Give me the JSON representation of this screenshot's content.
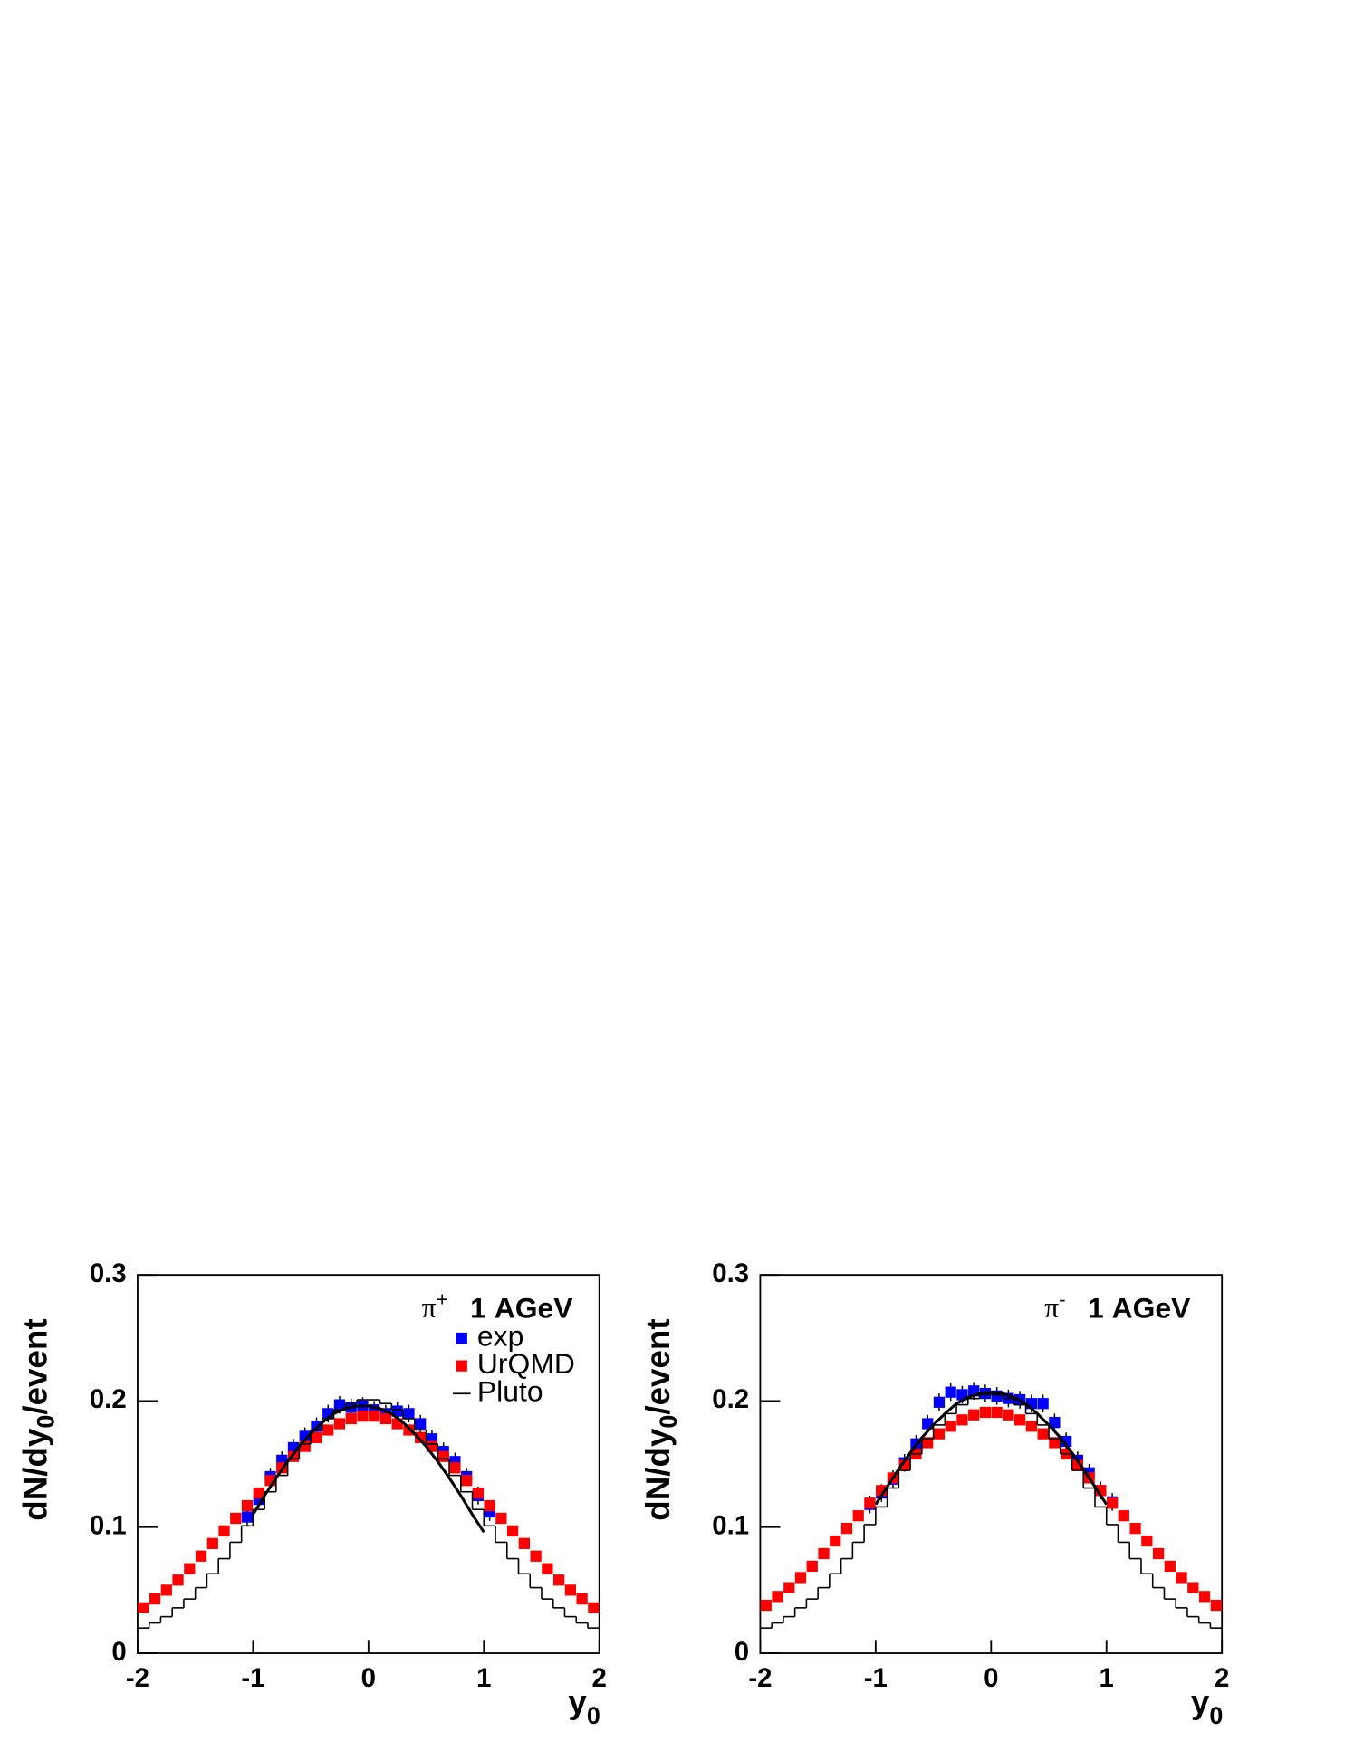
{
  "chart_data": [
    {
      "type": "rapidity",
      "annotation": {
        "particle": "π",
        "charge": "+",
        "energy": "1 AGeV"
      },
      "ylabel": {
        "main": "dN/dy",
        "sub": "0",
        "rest": "/event"
      },
      "xlabel": {
        "main": "y",
        "sub": "0"
      },
      "xlim": [
        -2,
        2
      ],
      "ylim": [
        0,
        0.3
      ],
      "xticks": [
        -2,
        -1,
        0,
        1,
        2
      ],
      "yticks": [
        0,
        0.1,
        0.2,
        0.3
      ],
      "legend": true,
      "series": [
        {
          "name": "exp",
          "color": "#0000ff",
          "style": "points",
          "x": [
            -1.05,
            -0.95,
            -0.85,
            -0.75,
            -0.65,
            -0.55,
            -0.45,
            -0.35,
            -0.25,
            -0.15,
            -0.05,
            0.05,
            0.15,
            0.25,
            0.35,
            0.45,
            0.55,
            0.65,
            0.75,
            0.85,
            0.95,
            1.05
          ],
          "values": [
            0.108,
            0.122,
            0.14,
            0.153,
            0.163,
            0.172,
            0.18,
            0.19,
            0.197,
            0.195,
            0.196,
            0.193,
            0.19,
            0.192,
            0.19,
            0.182,
            0.17,
            0.16,
            0.152,
            0.14,
            0.125,
            0.112
          ],
          "errors": [
            0.007,
            0.007,
            0.007,
            0.007,
            0.007,
            0.007,
            0.007,
            0.007,
            0.007,
            0.007,
            0.007,
            0.007,
            0.007,
            0.007,
            0.007,
            0.007,
            0.007,
            0.007,
            0.007,
            0.007,
            0.007,
            0.007
          ]
        },
        {
          "name": "UrQMD",
          "color": "#ff0000",
          "style": "points",
          "x": [
            -1.95,
            -1.85,
            -1.75,
            -1.65,
            -1.55,
            -1.45,
            -1.35,
            -1.25,
            -1.15,
            -1.05,
            -0.95,
            -0.85,
            -0.75,
            -0.65,
            -0.55,
            -0.45,
            -0.35,
            -0.25,
            -0.15,
            -0.05,
            0.05,
            0.15,
            0.25,
            0.35,
            0.45,
            0.55,
            0.65,
            0.75,
            0.85,
            0.95,
            1.05,
            1.15,
            1.25,
            1.35,
            1.45,
            1.55,
            1.65,
            1.75,
            1.85,
            1.95
          ],
          "values": [
            0.036,
            0.043,
            0.05,
            0.058,
            0.067,
            0.077,
            0.087,
            0.097,
            0.107,
            0.117,
            0.127,
            0.137,
            0.147,
            0.156,
            0.164,
            0.171,
            0.177,
            0.182,
            0.186,
            0.188,
            0.188,
            0.186,
            0.182,
            0.177,
            0.171,
            0.164,
            0.156,
            0.147,
            0.137,
            0.127,
            0.117,
            0.107,
            0.097,
            0.087,
            0.077,
            0.067,
            0.058,
            0.05,
            0.043,
            0.036
          ]
        },
        {
          "name": "Pluto",
          "color": "#000000",
          "style": "hist",
          "bins": [
            -2,
            -1.9,
            -1.8,
            -1.7,
            -1.6,
            -1.5,
            -1.4,
            -1.3,
            -1.2,
            -1.1,
            -1,
            -0.9,
            -0.8,
            -0.7,
            -0.6,
            -0.5,
            -0.4,
            -0.3,
            -0.2,
            -0.1,
            0,
            0.1,
            0.2,
            0.3,
            0.4,
            0.5,
            0.6,
            0.7,
            0.8,
            0.9,
            1,
            1.1,
            1.2,
            1.3,
            1.4,
            1.5,
            1.6,
            1.7,
            1.8,
            1.9,
            2
          ],
          "values": [
            0.02,
            0.024,
            0.029,
            0.036,
            0.043,
            0.052,
            0.063,
            0.075,
            0.088,
            0.101,
            0.114,
            0.128,
            0.141,
            0.154,
            0.166,
            0.177,
            0.186,
            0.193,
            0.198,
            0.201,
            0.201,
            0.198,
            0.193,
            0.186,
            0.177,
            0.166,
            0.154,
            0.141,
            0.128,
            0.114,
            0.101,
            0.088,
            0.075,
            0.063,
            0.052,
            0.043,
            0.036,
            0.029,
            0.024,
            0.02
          ]
        },
        {
          "color": "#000000",
          "style": "curve",
          "x": [
            -1,
            -0.9,
            -0.8,
            -0.7,
            -0.6,
            -0.5,
            -0.4,
            -0.3,
            -0.2,
            -0.1,
            0,
            0.1,
            0.2,
            0.3,
            0.4,
            0.5,
            0.6,
            0.7,
            0.8,
            0.9,
            1
          ],
          "values": [
            0.11,
            0.125,
            0.139,
            0.152,
            0.164,
            0.174,
            0.183,
            0.19,
            0.194,
            0.196,
            0.196,
            0.194,
            0.19,
            0.183,
            0.174,
            0.164,
            0.152,
            0.139,
            0.125,
            0.11,
            0.096
          ]
        }
      ]
    },
    {
      "type": "rapidity",
      "annotation": {
        "particle": "π",
        "charge": "-",
        "energy": "1 AGeV"
      },
      "ylabel": {
        "main": "dN/dy",
        "sub": "0",
        "rest": "/event"
      },
      "xlabel": {
        "main": "y",
        "sub": "0"
      },
      "xlim": [
        -2,
        2
      ],
      "ylim": [
        0,
        0.3
      ],
      "xticks": [
        -2,
        -1,
        0,
        1,
        2
      ],
      "yticks": [
        0,
        0.1,
        0.2,
        0.3
      ],
      "legend": false,
      "series": [
        {
          "color": "#0000ff",
          "style": "points",
          "x": [
            -1.05,
            -0.95,
            -0.85,
            -0.75,
            -0.65,
            -0.55,
            -0.45,
            -0.35,
            -0.25,
            -0.15,
            -0.05,
            0.05,
            0.15,
            0.25,
            0.35,
            0.45,
            0.55,
            0.65,
            0.75,
            0.85,
            0.95,
            1.05
          ],
          "values": [
            0.118,
            0.127,
            0.138,
            0.151,
            0.166,
            0.182,
            0.199,
            0.207,
            0.205,
            0.208,
            0.206,
            0.204,
            0.202,
            0.201,
            0.198,
            0.198,
            0.183,
            0.168,
            0.153,
            0.143,
            0.129,
            0.12
          ],
          "errors": [
            0.007,
            0.007,
            0.007,
            0.007,
            0.007,
            0.007,
            0.007,
            0.007,
            0.007,
            0.007,
            0.007,
            0.007,
            0.007,
            0.007,
            0.007,
            0.007,
            0.007,
            0.007,
            0.007,
            0.007,
            0.007,
            0.007
          ]
        },
        {
          "color": "#ff0000",
          "style": "points",
          "x": [
            -1.95,
            -1.85,
            -1.75,
            -1.65,
            -1.55,
            -1.45,
            -1.35,
            -1.25,
            -1.15,
            -1.05,
            -0.95,
            -0.85,
            -0.75,
            -0.65,
            -0.55,
            -0.45,
            -0.35,
            -0.25,
            -0.15,
            -0.05,
            0.05,
            0.15,
            0.25,
            0.35,
            0.45,
            0.55,
            0.65,
            0.75,
            0.85,
            0.95,
            1.05,
            1.15,
            1.25,
            1.35,
            1.45,
            1.55,
            1.65,
            1.75,
            1.85,
            1.95
          ],
          "values": [
            0.038,
            0.045,
            0.052,
            0.06,
            0.069,
            0.079,
            0.089,
            0.099,
            0.109,
            0.119,
            0.129,
            0.139,
            0.149,
            0.158,
            0.167,
            0.174,
            0.18,
            0.185,
            0.189,
            0.191,
            0.191,
            0.189,
            0.185,
            0.18,
            0.174,
            0.167,
            0.158,
            0.149,
            0.139,
            0.129,
            0.119,
            0.109,
            0.099,
            0.089,
            0.079,
            0.069,
            0.06,
            0.052,
            0.045,
            0.038
          ]
        },
        {
          "color": "#000000",
          "style": "hist",
          "bins": [
            -2,
            -1.9,
            -1.8,
            -1.7,
            -1.6,
            -1.5,
            -1.4,
            -1.3,
            -1.2,
            -1.1,
            -1,
            -0.9,
            -0.8,
            -0.7,
            -0.6,
            -0.5,
            -0.4,
            -0.3,
            -0.2,
            -0.1,
            0,
            0.1,
            0.2,
            0.3,
            0.4,
            0.5,
            0.6,
            0.7,
            0.8,
            0.9,
            1,
            1.1,
            1.2,
            1.3,
            1.4,
            1.5,
            1.6,
            1.7,
            1.8,
            1.9,
            2
          ],
          "values": [
            0.02,
            0.024,
            0.029,
            0.036,
            0.043,
            0.052,
            0.063,
            0.075,
            0.088,
            0.102,
            0.116,
            0.131,
            0.145,
            0.158,
            0.17,
            0.181,
            0.19,
            0.197,
            0.202,
            0.205,
            0.205,
            0.202,
            0.197,
            0.19,
            0.181,
            0.17,
            0.158,
            0.145,
            0.131,
            0.116,
            0.102,
            0.088,
            0.075,
            0.063,
            0.052,
            0.043,
            0.036,
            0.029,
            0.024,
            0.02
          ]
        },
        {
          "color": "#000000",
          "style": "curve",
          "x": [
            -1,
            -0.9,
            -0.8,
            -0.7,
            -0.6,
            -0.5,
            -0.4,
            -0.3,
            -0.2,
            -0.1,
            0,
            0.1,
            0.2,
            0.3,
            0.4,
            0.5,
            0.6,
            0.7,
            0.8,
            0.9,
            1
          ],
          "values": [
            0.118,
            0.132,
            0.146,
            0.159,
            0.171,
            0.181,
            0.19,
            0.198,
            0.203,
            0.206,
            0.207,
            0.206,
            0.203,
            0.198,
            0.19,
            0.181,
            0.171,
            0.159,
            0.146,
            0.132,
            0.118
          ]
        }
      ]
    }
  ]
}
